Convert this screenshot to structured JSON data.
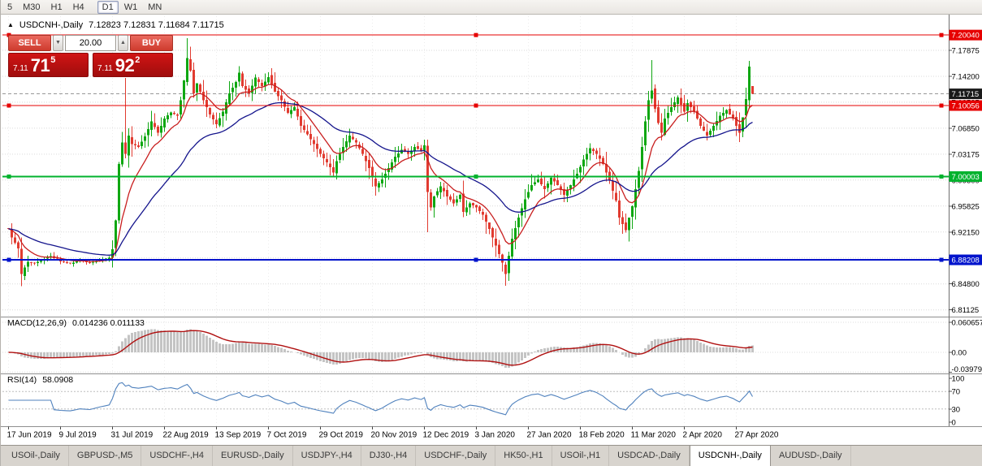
{
  "icons": {
    "shift_marker": "▲",
    "spin_down": "▼",
    "spin_up": "▲"
  },
  "toolbar": {
    "timeframes": [
      {
        "label": "5"
      },
      {
        "label": "M30"
      },
      {
        "label": "H1"
      },
      {
        "label": "H4"
      },
      {
        "label": "D1",
        "active": true
      },
      {
        "label": "W1"
      },
      {
        "label": "MN"
      }
    ]
  },
  "chart": {
    "title": "USDCNH-,Daily",
    "ohlc_text": "7.12823 7.12831 7.11684 7.11715"
  },
  "one_click": {
    "sell_label": "SELL",
    "buy_label": "BUY",
    "volume": "20.00",
    "sell_price": {
      "head": "7.11",
      "big": "71",
      "sup": "5"
    },
    "buy_price": {
      "head": "7.11",
      "big": "92",
      "sup": "2"
    }
  },
  "macd": {
    "label": "MACD(12,26,9)",
    "values": "0.014236 0.011133"
  },
  "rsi": {
    "label": "RSI(14)",
    "value": "58.0908"
  },
  "tabs": [
    {
      "label": "USOil-,Daily"
    },
    {
      "label": "GBPUSD-,M5"
    },
    {
      "label": "USDCHF-,H4"
    },
    {
      "label": "EURUSD-,Daily"
    },
    {
      "label": "USDJPY-,H4"
    },
    {
      "label": "DJ30-,H4"
    },
    {
      "label": "USDCHF-,Daily"
    },
    {
      "label": "HK50-,H1"
    },
    {
      "label": "USOil-,H1"
    },
    {
      "label": "USDCAD-,Daily"
    },
    {
      "label": "USDCNH-,Daily",
      "active": true
    },
    {
      "label": "AUDUSD-,Daily"
    }
  ],
  "chart_data": {
    "type": "candlestick",
    "symbol": "USDCNH-",
    "timeframe": "Daily",
    "candle_count": 230,
    "last_candle": {
      "open": 7.12823,
      "high": 7.12831,
      "low": 7.11684,
      "close": 7.11715
    },
    "colors": {
      "up": "#0fa712",
      "down": "#e13b30",
      "macd_bar": "#c4c4c4",
      "macd_signal": "#b01010",
      "rsi": "#4f81bd",
      "grid": "#d9d9d9"
    },
    "y_axis": {
      "ticks": [
        "7.17875",
        "7.14200",
        "7.10525",
        "7.06850",
        "7.03175",
        "6.99500",
        "6.95825",
        "6.92150",
        "6.88475",
        "6.84800",
        "6.81125"
      ]
    },
    "x_axis": {
      "indices": [
        0,
        16,
        32,
        48,
        64,
        80,
        96,
        112,
        128,
        144,
        160,
        176,
        192,
        208,
        224
      ],
      "labels": [
        "17 Jun 2019",
        "9 Jul 2019",
        "31 Jul 2019",
        "22 Aug 2019",
        "13 Sep 2019",
        "7 Oct 2019",
        "29 Oct 2019",
        "20 Nov 2019",
        "12 Dec 2019",
        "3 Jan 2020",
        "27 Jan 2020",
        "18 Feb 2020",
        "11 Mar 2020",
        "2 Apr 2020",
        "27 Apr 2020"
      ]
    },
    "close_keypoints": [
      [
        0,
        6.926
      ],
      [
        1,
        6.914
      ],
      [
        3,
        6.898
      ],
      [
        4,
        6.862
      ],
      [
        5,
        6.871
      ],
      [
        6,
        6.879
      ],
      [
        8,
        6.877
      ],
      [
        10,
        6.881
      ],
      [
        13,
        6.887
      ],
      [
        16,
        6.88
      ],
      [
        19,
        6.877
      ],
      [
        22,
        6.881
      ],
      [
        25,
        6.878
      ],
      [
        28,
        6.882
      ],
      [
        31,
        6.885
      ],
      [
        32,
        6.897
      ],
      [
        33,
        6.938
      ],
      [
        34,
        7.018
      ],
      [
        35,
        7.048
      ],
      [
        36,
        7.032
      ],
      [
        37,
        7.058
      ],
      [
        38,
        7.046
      ],
      [
        40,
        7.042
      ],
      [
        42,
        7.057
      ],
      [
        44,
        7.078
      ],
      [
        46,
        7.062
      ],
      [
        48,
        7.082
      ],
      [
        50,
        7.091
      ],
      [
        52,
        7.086
      ],
      [
        53,
        7.108
      ],
      [
        54,
        7.136
      ],
      [
        55,
        7.168
      ],
      [
        56,
        7.15
      ],
      [
        57,
        7.118
      ],
      [
        58,
        7.132
      ],
      [
        60,
        7.108
      ],
      [
        62,
        7.088
      ],
      [
        64,
        7.074
      ],
      [
        66,
        7.092
      ],
      [
        68,
        7.118
      ],
      [
        70,
        7.134
      ],
      [
        71,
        7.147
      ],
      [
        72,
        7.128
      ],
      [
        74,
        7.118
      ],
      [
        76,
        7.14
      ],
      [
        78,
        7.128
      ],
      [
        80,
        7.141
      ],
      [
        82,
        7.12
      ],
      [
        84,
        7.108
      ],
      [
        86,
        7.09
      ],
      [
        88,
        7.098
      ],
      [
        90,
        7.072
      ],
      [
        92,
        7.06
      ],
      [
        94,
        7.046
      ],
      [
        96,
        7.032
      ],
      [
        98,
        7.02
      ],
      [
        100,
        7.006
      ],
      [
        101,
        7.022
      ],
      [
        103,
        7.042
      ],
      [
        105,
        7.058
      ],
      [
        107,
        7.048
      ],
      [
        109,
        7.032
      ],
      [
        111,
        7.012
      ],
      [
        113,
        6.986
      ],
      [
        115,
        6.996
      ],
      [
        117,
        7.012
      ],
      [
        119,
        7.028
      ],
      [
        121,
        7.038
      ],
      [
        123,
        7.032
      ],
      [
        125,
        7.042
      ],
      [
        127,
        7.036
      ],
      [
        128,
        7.044
      ],
      [
        129,
        6.978
      ],
      [
        130,
        6.956
      ],
      [
        131,
        6.972
      ],
      [
        133,
        6.986
      ],
      [
        135,
        6.972
      ],
      [
        137,
        6.962
      ],
      [
        139,
        6.974
      ],
      [
        140,
        6.95
      ],
      [
        142,
        6.962
      ],
      [
        144,
        6.956
      ],
      [
        146,
        6.946
      ],
      [
        148,
        6.926
      ],
      [
        150,
        6.902
      ],
      [
        152,
        6.878
      ],
      [
        153,
        6.862
      ],
      [
        154,
        6.888
      ],
      [
        155,
        6.912
      ],
      [
        157,
        6.942
      ],
      [
        159,
        6.968
      ],
      [
        161,
        6.988
      ],
      [
        163,
        6.996
      ],
      [
        165,
        6.982
      ],
      [
        167,
        6.998
      ],
      [
        169,
        6.988
      ],
      [
        171,
        6.974
      ],
      [
        173,
        6.988
      ],
      [
        175,
        7.004
      ],
      [
        177,
        7.024
      ],
      [
        179,
        7.04
      ],
      [
        181,
        7.032
      ],
      [
        183,
        7.018
      ],
      [
        185,
        6.994
      ],
      [
        187,
        6.966
      ],
      [
        188,
        6.942
      ],
      [
        190,
        6.924
      ],
      [
        191,
        6.942
      ],
      [
        192,
        6.958
      ],
      [
        193,
        6.982
      ],
      [
        194,
        7.008
      ],
      [
        195,
        7.042
      ],
      [
        196,
        7.078
      ],
      [
        197,
        7.108
      ],
      [
        198,
        7.122
      ],
      [
        199,
        7.096
      ],
      [
        200,
        7.076
      ],
      [
        201,
        7.062
      ],
      [
        202,
        7.082
      ],
      [
        204,
        7.098
      ],
      [
        206,
        7.112
      ],
      [
        208,
        7.092
      ],
      [
        209,
        7.104
      ],
      [
        211,
        7.092
      ],
      [
        213,
        7.072
      ],
      [
        215,
        7.058
      ],
      [
        217,
        7.072
      ],
      [
        219,
        7.086
      ],
      [
        221,
        7.094
      ],
      [
        223,
        7.082
      ],
      [
        225,
        7.062
      ],
      [
        226,
        7.084
      ],
      [
        227,
        7.11
      ],
      [
        228,
        7.156
      ],
      [
        229,
        7.11715
      ]
    ],
    "wick_overrides": [
      {
        "i": 4,
        "l": 6.8445
      },
      {
        "i": 36,
        "h": 7.1395
      },
      {
        "i": 55,
        "h": 7.1958
      },
      {
        "i": 129,
        "h": 7.052,
        "l": 6.921
      },
      {
        "i": 153,
        "l": 6.8452
      },
      {
        "i": 198,
        "h": 7.1648
      },
      {
        "i": 228,
        "h": 7.164
      },
      {
        "i": 229,
        "o": 7.12823,
        "h": 7.12831,
        "l": 7.11684,
        "c": 7.11715
      }
    ],
    "moving_averages": [
      {
        "period": 10,
        "color": "#c81e1e",
        "name": "ma-fast-line"
      },
      {
        "period": 34,
        "color": "#14148c",
        "name": "ma-slow-line"
      }
    ],
    "horizontal_lines": [
      {
        "label": "7.20040",
        "price": 7.2004,
        "color": "#e60000",
        "width": 1,
        "handles": true
      },
      {
        "label": "7.10056",
        "price": 7.10056,
        "color": "#e60000",
        "width": 1,
        "handles": true
      },
      {
        "label": "7.00003",
        "price": 7.00003,
        "color": "#00b22d",
        "width": 2,
        "handles": true
      },
      {
        "label": "6.88208",
        "price": 6.88208,
        "color": "#0013cc",
        "width": 2,
        "handles": true
      }
    ],
    "bid_line": {
      "price": 7.11715,
      "color": "#777777"
    },
    "price_badges": [
      {
        "label": "7.20040",
        "price": 7.2004,
        "color": "#e60000"
      },
      {
        "label": "7.11715",
        "price": 7.11715,
        "color": "#1a1a1a"
      },
      {
        "label": "7.10056",
        "price": 7.10056,
        "color": "#e60000"
      },
      {
        "label": "7.00003",
        "price": 7.00003,
        "color": "#00b22d"
      },
      {
        "label": "6.88208",
        "price": 6.88208,
        "color": "#0013cc"
      }
    ],
    "indicators": {
      "macd": {
        "fast": 12,
        "slow": 26,
        "signal": 9,
        "ticks": [
          {
            "v": 0.060657,
            "label": "0.060657"
          },
          {
            "v": 0,
            "label": "0.00"
          },
          {
            "v": -0.039792,
            "label": "-0.039792"
          }
        ]
      },
      "rsi": {
        "period": 14,
        "levels": [
          70,
          30
        ],
        "ticks": [
          {
            "v": 100,
            "label": "100"
          },
          {
            "v": 70,
            "label": "70"
          },
          {
            "v": 30,
            "label": "30"
          },
          {
            "v": 0,
            "label": "0"
          }
        ]
      }
    }
  }
}
